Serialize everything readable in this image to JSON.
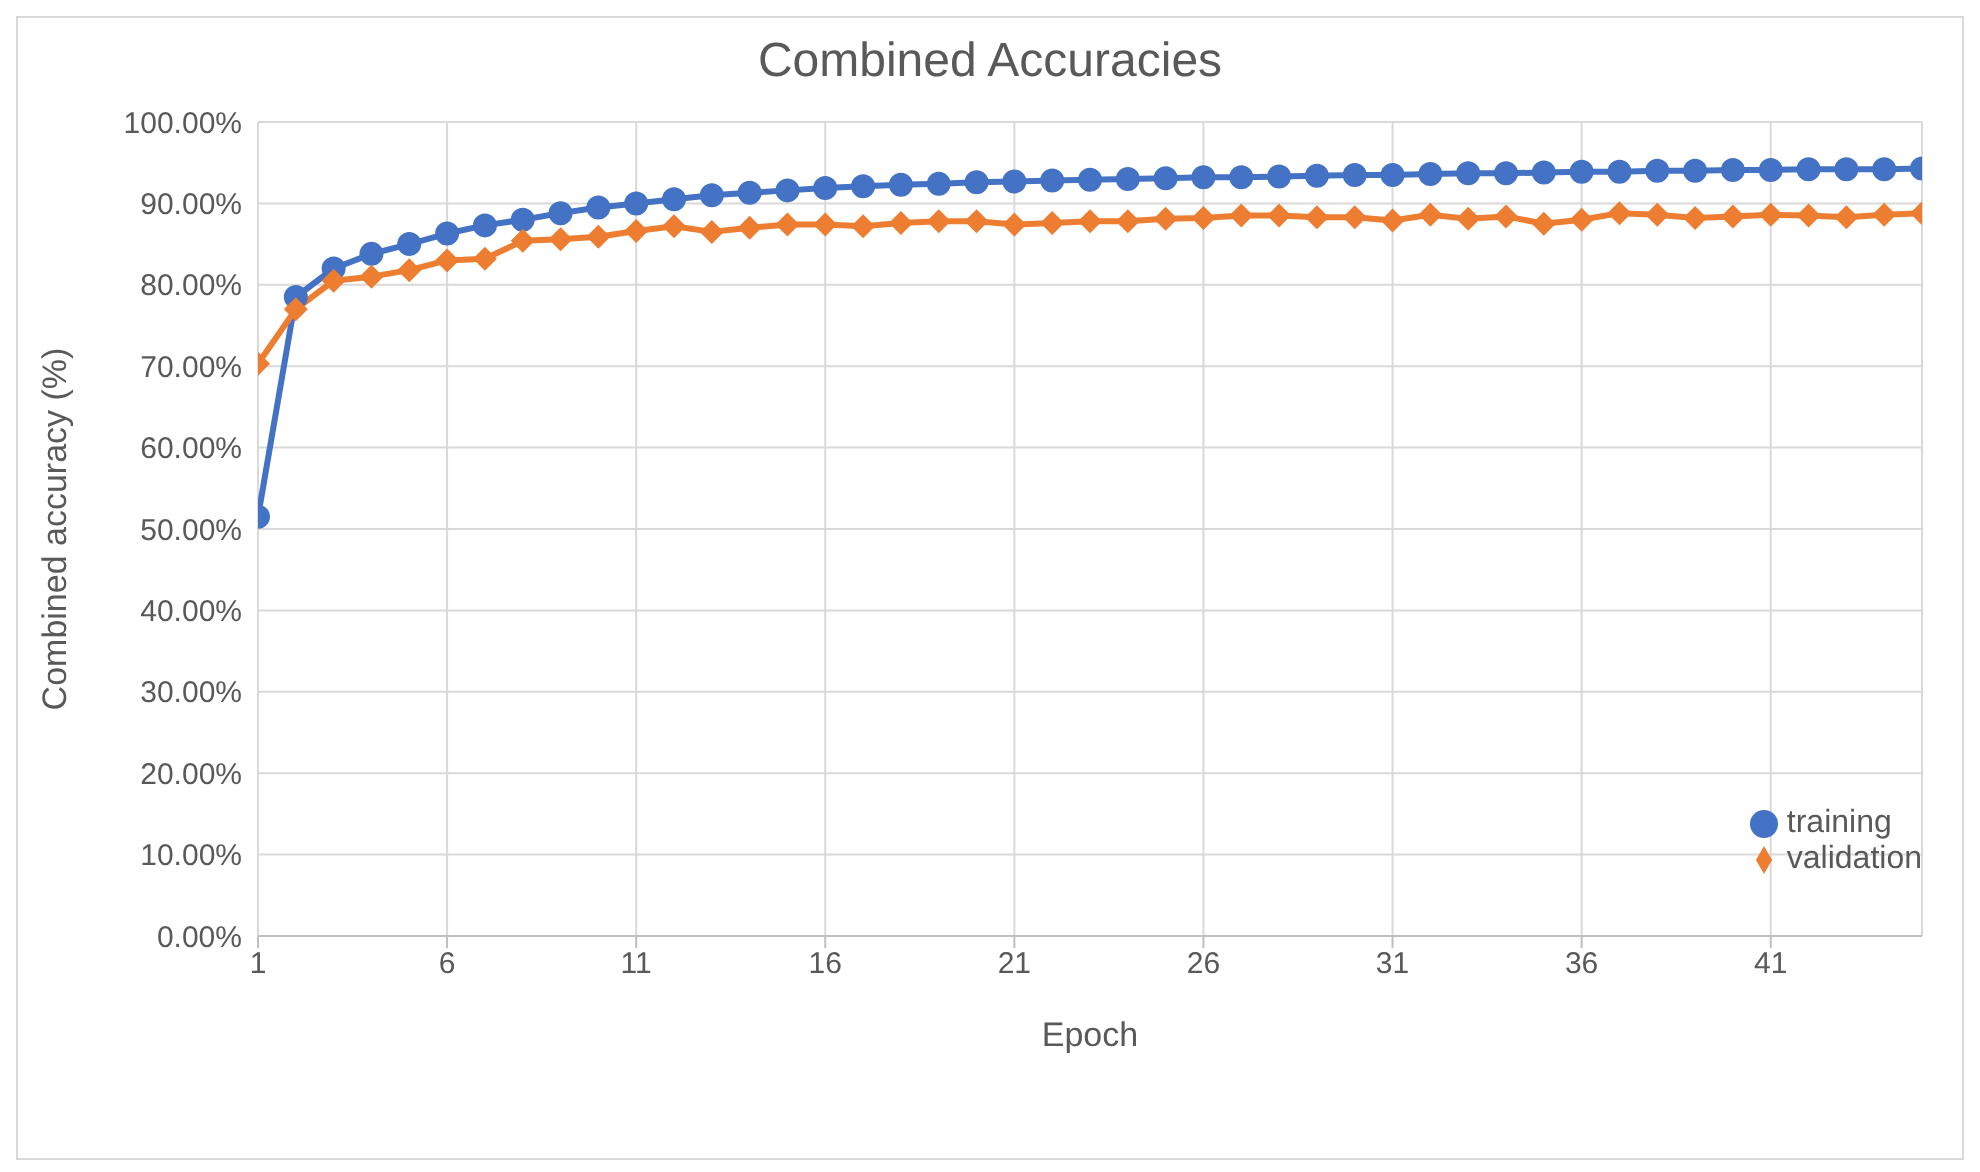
{
  "chart_data": {
    "type": "line",
    "title": "Combined Accuracies",
    "xlabel": "Epoch",
    "ylabel": "Combined accuracy (%)",
    "x": [
      1,
      2,
      3,
      4,
      5,
      6,
      7,
      8,
      9,
      10,
      11,
      12,
      13,
      14,
      15,
      16,
      17,
      18,
      19,
      20,
      21,
      22,
      23,
      24,
      25,
      26,
      27,
      28,
      29,
      30,
      31,
      32,
      33,
      34,
      35,
      36,
      37,
      38,
      39,
      40,
      41,
      42,
      43,
      44,
      45
    ],
    "series": [
      {
        "name": "training",
        "color": "#4472c4",
        "marker": "circle",
        "values": [
          51.5,
          78.5,
          82,
          83.8,
          85,
          86.3,
          87.3,
          88,
          88.8,
          89.5,
          90,
          90.5,
          91,
          91.3,
          91.6,
          91.9,
          92.1,
          92.3,
          92.4,
          92.6,
          92.7,
          92.8,
          92.9,
          93,
          93.1,
          93.2,
          93.2,
          93.3,
          93.4,
          93.5,
          93.5,
          93.6,
          93.7,
          93.7,
          93.8,
          93.9,
          93.9,
          94,
          94,
          94.1,
          94.1,
          94.2,
          94.2,
          94.2,
          94.3
        ]
      },
      {
        "name": "validation",
        "color": "#ed7d31",
        "marker": "diamond",
        "values": [
          70.3,
          77,
          80.5,
          81,
          81.8,
          83,
          83.2,
          85.4,
          85.6,
          85.9,
          86.6,
          87.2,
          86.5,
          87,
          87.4,
          87.4,
          87.2,
          87.6,
          87.8,
          87.8,
          87.4,
          87.6,
          87.8,
          87.8,
          88.1,
          88.2,
          88.5,
          88.5,
          88.3,
          88.3,
          87.9,
          88.6,
          88.1,
          88.4,
          87.5,
          88,
          88.8,
          88.6,
          88.2,
          88.4,
          88.6,
          88.5,
          88.3,
          88.6,
          88.8
        ]
      }
    ],
    "xlim": [
      1,
      45
    ],
    "xticks": [
      1,
      6,
      11,
      16,
      21,
      26,
      31,
      36,
      41
    ],
    "ylim": [
      0,
      100
    ],
    "yticks": [
      {
        "value": 0,
        "label": "0.00%"
      },
      {
        "value": 10,
        "label": "10.00%"
      },
      {
        "value": 20,
        "label": "20.00%"
      },
      {
        "value": 30,
        "label": "30.00%"
      },
      {
        "value": 40,
        "label": "40.00%"
      },
      {
        "value": 50,
        "label": "50.00%"
      },
      {
        "value": 60,
        "label": "60.00%"
      },
      {
        "value": 70,
        "label": "70.00%"
      },
      {
        "value": 80,
        "label": "80.00%"
      },
      {
        "value": 90,
        "label": "90.00%"
      },
      {
        "value": 100,
        "label": "100.00%"
      }
    ],
    "grid": true,
    "legend": "bottom right",
    "line_style": "solid"
  }
}
